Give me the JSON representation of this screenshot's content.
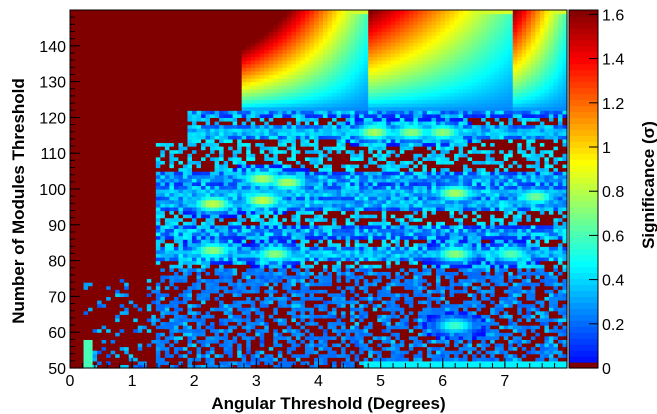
{
  "chart_data": {
    "type": "heatmap",
    "title": "",
    "xlabel": "Angular Threshold (Degrees)",
    "ylabel": "Number of Modules Threshold",
    "zlabel": "Significance (σ)",
    "xlim": [
      0,
      8
    ],
    "ylim": [
      50,
      150
    ],
    "zlim": [
      0,
      1.62
    ],
    "x_ticks": [
      "0",
      "1",
      "2",
      "3",
      "4",
      "5",
      "6",
      "7"
    ],
    "y_ticks": [
      "50",
      "60",
      "70",
      "80",
      "90",
      "100",
      "110",
      "120",
      "130",
      "140"
    ],
    "z_ticks": [
      "0",
      "0.2",
      "0.4",
      "0.6",
      "0.8",
      "1",
      "1.2",
      "1.4",
      "1.6"
    ],
    "colormap": "jet (dark red = 0, blue, cyan, green, yellow, orange, red = max)",
    "zero_color": "#800000",
    "grid": false,
    "colorbar_position": "right",
    "features": {
      "upper_left_block_zero": {
        "x_range": [
          0,
          2.8
        ],
        "y_range": [
          122,
          150
        ],
        "value": 0
      },
      "max_significance": {
        "x": 2.9,
        "y": 147,
        "value": 1.6
      },
      "hotspots": [
        {
          "x": 2.3,
          "y": 96,
          "value": 0.85
        },
        {
          "x": 2.3,
          "y": 83,
          "value": 0.75
        },
        {
          "x": 3.1,
          "y": 103,
          "value": 0.8
        },
        {
          "x": 3.5,
          "y": 102,
          "value": 0.8
        },
        {
          "x": 3.1,
          "y": 97,
          "value": 0.85
        },
        {
          "x": 3.3,
          "y": 82,
          "value": 0.75
        },
        {
          "x": 4.9,
          "y": 116,
          "value": 0.8
        },
        {
          "x": 5.5,
          "y": 116,
          "value": 0.75
        },
        {
          "x": 6.0,
          "y": 116,
          "value": 0.75
        },
        {
          "x": 6.2,
          "y": 99,
          "value": 0.8
        },
        {
          "x": 6.2,
          "y": 82,
          "value": 0.75
        },
        {
          "x": 7.5,
          "y": 98,
          "value": 0.7
        },
        {
          "x": 6.2,
          "y": 62,
          "value": 0.6
        },
        {
          "x": 7.1,
          "y": 82,
          "value": 0.65
        }
      ],
      "top_band": {
        "x_range": [
          2.8,
          8
        ],
        "y_range": [
          122,
          150
        ],
        "peak_value": 1.6
      }
    }
  }
}
